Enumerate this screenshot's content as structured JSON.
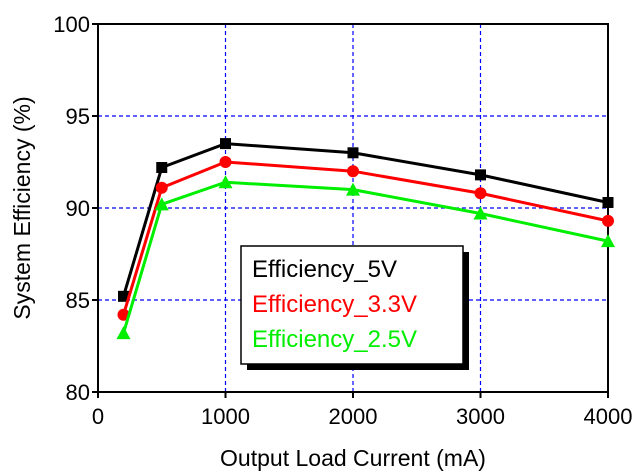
{
  "chart_data": {
    "type": "line",
    "xlabel": "Output Load Current (mA)",
    "ylabel": "System Efficiency (%)",
    "xlim": [
      0,
      4000
    ],
    "ylim": [
      80,
      100
    ],
    "xticks": [
      0,
      1000,
      2000,
      3000,
      4000
    ],
    "yticks": [
      80,
      85,
      90,
      95,
      100
    ],
    "x_tick_labels": [
      "0",
      "1000",
      "2000",
      "3000",
      "4000"
    ],
    "y_tick_labels": [
      "80",
      "85",
      "90",
      "95",
      "100"
    ],
    "grid": true,
    "legend_position": "center",
    "series": [
      {
        "name": "Efficiency_5V",
        "color": "#000000",
        "marker": "square",
        "x": [
          200,
          500,
          1000,
          2000,
          3000,
          4000
        ],
        "y": [
          85.2,
          92.2,
          93.5,
          93.0,
          91.8,
          90.3
        ]
      },
      {
        "name": "Efficiency_3.3V",
        "color": "#ff0000",
        "marker": "circle",
        "x": [
          200,
          500,
          1000,
          2000,
          3000,
          4000
        ],
        "y": [
          84.2,
          91.1,
          92.5,
          92.0,
          90.8,
          89.3
        ]
      },
      {
        "name": "Efficiency_2.5V",
        "color": "#00ee00",
        "marker": "triangle",
        "x": [
          200,
          500,
          1000,
          2000,
          3000,
          4000
        ],
        "y": [
          83.2,
          90.2,
          91.4,
          91.0,
          89.7,
          88.2
        ]
      }
    ]
  }
}
